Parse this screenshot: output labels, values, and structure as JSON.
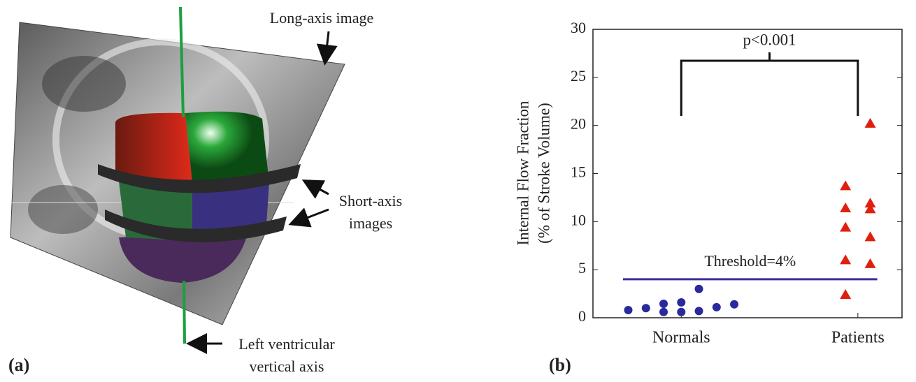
{
  "panel_a": {
    "label": "(a)",
    "annotations": {
      "long_axis": [
        "Long-axis image"
      ],
      "short_axis": [
        "Short-axis",
        "images"
      ],
      "vertical_axis": [
        "Left ventricular",
        "vertical axis"
      ]
    }
  },
  "chart_data": {
    "type": "scatter",
    "panel_label": "(b)",
    "ylabel": [
      "Internal Flow Fraction",
      "(% of Stroke Volume)"
    ],
    "annotation": "p<0.001",
    "xlim": [
      0.5,
      2.25
    ],
    "xticks": [
      {
        "value": 1,
        "label": "Normals"
      },
      {
        "value": 2,
        "label": "Patients"
      }
    ],
    "ylim": [
      0,
      30
    ],
    "yticks": [
      0,
      5,
      10,
      15,
      20,
      25,
      30
    ],
    "threshold": {
      "value": 4,
      "label": "Threshold=4%",
      "color": "#3a2f9a",
      "x_range": [
        0.67,
        2.11
      ]
    },
    "series": [
      {
        "marker": "circle",
        "color": "#2a2a9c",
        "x": [
          0.7,
          0.8,
          0.9,
          0.9,
          1.0,
          1.0,
          1.1,
          1.1,
          1.2,
          1.3
        ],
        "values": [
          0.8,
          1.0,
          1.45,
          0.6,
          1.6,
          0.6,
          3.0,
          0.7,
          1.1,
          1.4
        ]
      },
      {
        "marker": "triangle",
        "color": "#e0200f",
        "x": [
          1.93,
          1.93,
          1.93,
          1.93,
          1.93,
          2.07,
          2.07,
          2.07,
          2.07,
          2.07
        ],
        "values": [
          2.4,
          6.0,
          9.4,
          11.4,
          13.7,
          20.2,
          11.9,
          11.3,
          8.4,
          5.6
        ]
      }
    ]
  }
}
